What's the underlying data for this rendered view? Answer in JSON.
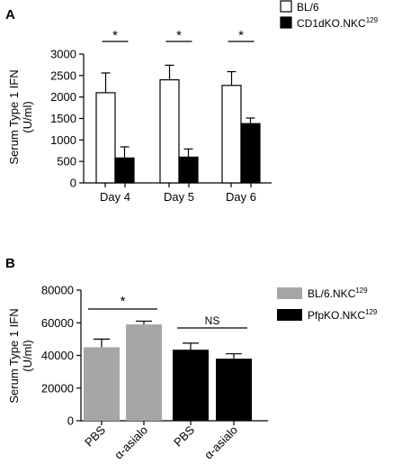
{
  "colors": {
    "white_bar": "#ffffff",
    "black_bar": "#000000",
    "gray_bar": "#a6a6a6",
    "axis": "#000000"
  },
  "chart_data": [
    {
      "panel": "A",
      "type": "bar",
      "ylabel": "Serum Type 1 IFN\n(U/ml)",
      "ylim": [
        0,
        3000
      ],
      "yticks": [
        0,
        500,
        1000,
        1500,
        2000,
        2500,
        3000
      ],
      "categories": [
        "Day 4",
        "Day 5",
        "Day 6"
      ],
      "series": [
        {
          "name": "BL/6",
          "label_base": "BL/6",
          "label_sup": "",
          "color": "#ffffff",
          "values": [
            2100,
            2400,
            2270
          ],
          "errors": [
            460,
            340,
            320
          ]
        },
        {
          "name": "CD1dKO.NKC129",
          "label_base": "CD1dKO.NKC",
          "label_sup": "129",
          "color": "#000000",
          "values": [
            580,
            600,
            1380
          ],
          "errors": [
            260,
            190,
            130
          ]
        }
      ],
      "significance": [
        "*",
        "*",
        "*"
      ],
      "legend": "top-right"
    },
    {
      "panel": "B",
      "type": "bar",
      "ylabel": "Serum Type 1 IFN\n(U/ml)",
      "ylim": [
        0,
        80000
      ],
      "yticks": [
        0,
        20000,
        40000,
        60000,
        80000
      ],
      "categories": [
        "PBS",
        "α-asialo",
        "PBS",
        "α-asialo"
      ],
      "bars": [
        {
          "category": "PBS",
          "series": "BL/6.NKC129",
          "value": 45000,
          "error": 5000,
          "color": "#a6a6a6"
        },
        {
          "category": "α-asialo",
          "series": "BL/6.NKC129",
          "value": 59000,
          "error": 2000,
          "color": "#a6a6a6"
        },
        {
          "category": "PBS",
          "series": "PfpKO.NKC129",
          "value": 43500,
          "error": 4000,
          "color": "#000000"
        },
        {
          "category": "α-asialo",
          "series": "PfpKO.NKC129",
          "value": 38000,
          "error": 3000,
          "color": "#000000"
        }
      ],
      "series": [
        {
          "name": "BL/6.NKC129",
          "label_base": "BL/6.NKC",
          "label_sup": "129",
          "color": "#a6a6a6"
        },
        {
          "name": "PfpKO.NKC129",
          "label_base": "PfpKO.NKC",
          "label_sup": "129",
          "color": "#000000"
        }
      ],
      "significance": [
        {
          "pair": [
            0,
            1
          ],
          "label": "*"
        },
        {
          "pair": [
            2,
            3
          ],
          "label": "NS"
        }
      ],
      "legend": "top-right"
    }
  ]
}
